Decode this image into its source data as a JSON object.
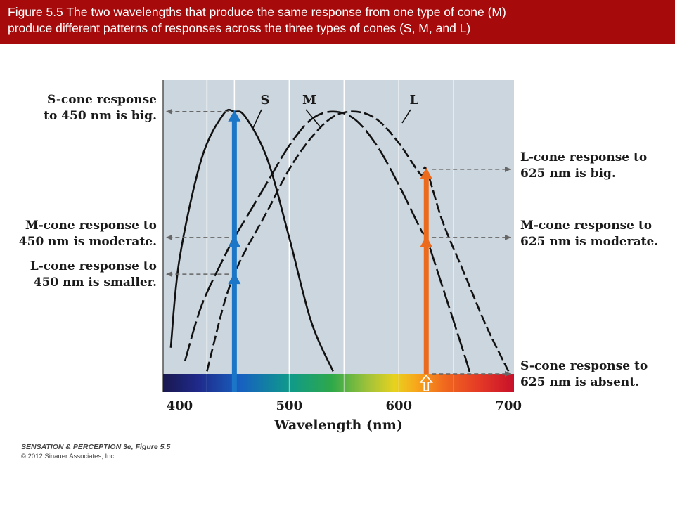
{
  "header": {
    "line1": "Figure 5.5  The two wavelengths that produce the same response from one type of cone (M)",
    "line2": "produce different patterns of responses across the three types of cones (S, M, and L)"
  },
  "chart_data": {
    "type": "line",
    "title": "",
    "xlabel": "Wavelength (nm)",
    "ylabel": "",
    "xlim": [
      385,
      705
    ],
    "ylim": [
      0,
      1.12
    ],
    "xticks": [
      400,
      500,
      600,
      700
    ],
    "grid": true,
    "series": [
      {
        "name": "S",
        "style": "solid",
        "x": [
          392,
          400,
          420,
          440,
          450,
          460,
          480,
          500,
          520,
          540
        ],
        "y": [
          0.1,
          0.44,
          0.82,
          0.99,
          1.0,
          0.98,
          0.82,
          0.52,
          0.2,
          0.01
        ]
      },
      {
        "name": "M",
        "style": "long-dash",
        "x": [
          405,
          420,
          440,
          450,
          460,
          480,
          500,
          520,
          540,
          560,
          580,
          600,
          620,
          625,
          640,
          660,
          665
        ],
        "y": [
          0.05,
          0.26,
          0.44,
          0.52,
          0.59,
          0.73,
          0.87,
          0.97,
          1.0,
          0.97,
          0.87,
          0.72,
          0.55,
          0.52,
          0.33,
          0.07,
          0.0
        ]
      },
      {
        "name": "L",
        "style": "short-dash",
        "x": [
          425,
          440,
          450,
          460,
          480,
          500,
          520,
          540,
          560,
          580,
          600,
          620,
          625,
          640,
          660,
          680,
          700
        ],
        "y": [
          0.01,
          0.26,
          0.38,
          0.47,
          0.62,
          0.78,
          0.9,
          0.98,
          1.0,
          0.97,
          0.88,
          0.76,
          0.78,
          0.58,
          0.38,
          0.18,
          0.01
        ]
      }
    ],
    "markers": [
      {
        "wavelength": 450,
        "color": "#1b76c8",
        "responses": {
          "S": 1.0,
          "M": 0.52,
          "L": 0.38
        }
      },
      {
        "wavelength": 625,
        "color": "#ec6a1c",
        "responses": {
          "S": 0.0,
          "M": 0.52,
          "L": 0.78
        }
      }
    ],
    "annotations_left": [
      {
        "lines": [
          "S-cone response",
          "to 450 nm is big."
        ],
        "value": 1.0
      },
      {
        "lines": [
          "M-cone response to",
          "450 nm is moderate."
        ],
        "value": 0.52
      },
      {
        "lines": [
          "L-cone response to",
          "450 nm is smaller."
        ],
        "value": 0.38
      }
    ],
    "annotations_right": [
      {
        "lines": [
          "L-cone response to",
          "625 nm is big."
        ],
        "value": 0.78
      },
      {
        "lines": [
          "M-cone response to",
          "625 nm is moderate."
        ],
        "value": 0.52
      },
      {
        "lines": [
          "S-cone response to",
          "625 nm is absent."
        ],
        "value": 0.0
      }
    ],
    "colors": {
      "plot_bg": "#ccd6de",
      "curve": "#111111",
      "arrow_dash": "#666666"
    }
  },
  "credit": {
    "line1": "SENSATION & PERCEPTION 3e, Figure 5.5",
    "line2": "© 2012 Sinauer Associates, Inc."
  }
}
